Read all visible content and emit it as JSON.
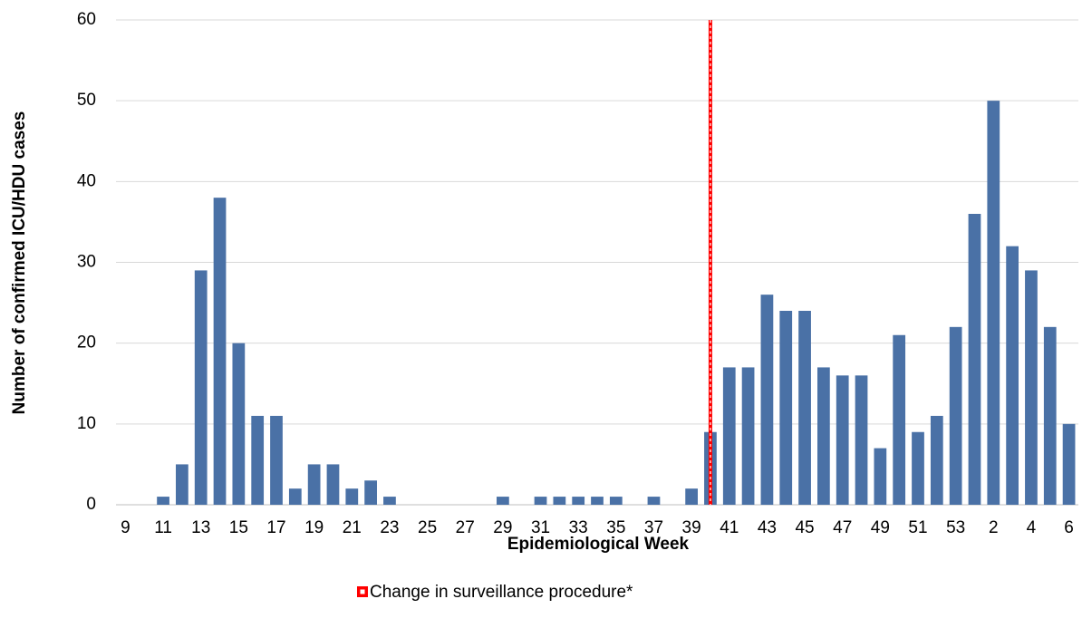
{
  "chart_data": {
    "type": "bar",
    "x_label": "Epidemiological Week",
    "y_label": "Number of confirmed ICU/HDU cases",
    "categories": [
      "9",
      null,
      "11",
      null,
      "13",
      null,
      "15",
      null,
      "17",
      null,
      "19",
      null,
      "21",
      null,
      "23",
      null,
      "25",
      null,
      "27",
      null,
      "29",
      null,
      "31",
      null,
      "33",
      null,
      "35",
      null,
      "37",
      null,
      "39",
      null,
      "41",
      null,
      "43",
      null,
      "45",
      null,
      "47",
      null,
      "49",
      null,
      "51",
      null,
      "53",
      null,
      "2",
      null,
      "4",
      null,
      "6"
    ],
    "values": [
      0,
      0,
      1,
      5,
      29,
      38,
      20,
      11,
      11,
      2,
      5,
      5,
      2,
      3,
      1,
      0,
      0,
      0,
      0,
      0,
      1,
      0,
      1,
      1,
      1,
      1,
      1,
      0,
      1,
      0,
      2,
      9,
      17,
      17,
      26,
      24,
      24,
      17,
      16,
      16,
      7,
      21,
      9,
      11,
      22,
      36,
      50,
      32,
      29,
      22,
      10
    ],
    "color": "#4a71a6",
    "ylim": [
      0,
      60
    ],
    "yticks": [
      0,
      10,
      20,
      30,
      40,
      50,
      60
    ],
    "grid": true,
    "annotation": {
      "label": "Change in surveillance procedure*",
      "color": "#ff0000",
      "index": 31
    }
  }
}
